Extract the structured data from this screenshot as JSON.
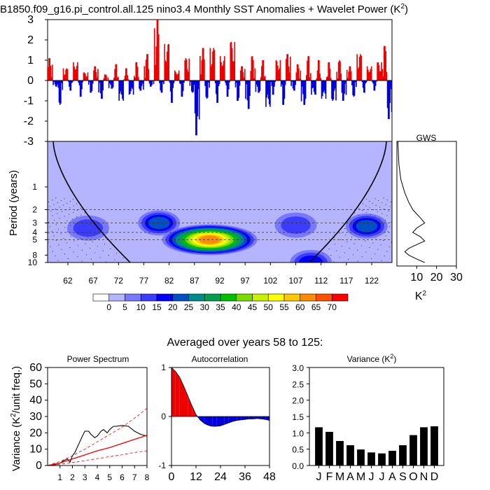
{
  "figure": {
    "title": "B1850.f09_g16.pi_control.all.125 nino3.4 Monthly SST Anomalies + Wavelet Power (K",
    "title_sup": "2",
    "title_end": ")",
    "averaged_title": "Averaged over years 58 to 125:"
  },
  "colors": {
    "positive": "#ee0000",
    "negative": "#0000dd",
    "wavelet_bg": "#b4b4ff"
  },
  "chart_data": [
    {
      "id": "sst_anomaly",
      "type": "area",
      "title": "",
      "xlabel": "",
      "ylabel": "",
      "ylim": [
        -3,
        3
      ],
      "yticks": [
        3,
        2,
        1,
        0,
        -1,
        -2,
        -3
      ],
      "xlim": [
        58,
        126
      ],
      "note": "positive anomalies red, negative blue",
      "series": [
        {
          "x": [
            58,
            59,
            60,
            61,
            62,
            63,
            64,
            65,
            66,
            67,
            68,
            69,
            70,
            71,
            72,
            73,
            74,
            75,
            76,
            77,
            78,
            79,
            80,
            81,
            82,
            83,
            84,
            85,
            86,
            87,
            88,
            89,
            90,
            91,
            92,
            93,
            94,
            95,
            96,
            97,
            98,
            99,
            100,
            101,
            102,
            103,
            104,
            105,
            106,
            107,
            108,
            109,
            110,
            111,
            112,
            113,
            114,
            115,
            116,
            117,
            118,
            119,
            120,
            121,
            122,
            123,
            124,
            125
          ],
          "values": [
            1.1,
            -0.3,
            -1.2,
            0.6,
            -0.5,
            0.9,
            -0.8,
            0.4,
            -0.6,
            0.7,
            -0.9,
            0.3,
            -0.4,
            0.8,
            -1.0,
            0.6,
            -0.7,
            0.9,
            -0.5,
            1.3,
            -0.3,
            3.0,
            -0.6,
            1.8,
            -1.1,
            0.5,
            -0.8,
            1.1,
            -0.6,
            -2.7,
            1.6,
            -0.9,
            1.6,
            -1.1,
            1.2,
            -0.8,
            1.9,
            -1.0,
            0.7,
            -1.4,
            1.2,
            -0.6,
            1.0,
            -1.3,
            -0.7,
            1.0,
            -1.2,
            1.3,
            -0.5,
            0.8,
            -1.2,
            1.2,
            -0.7,
            1.0,
            -0.9,
            0.9,
            -1.0,
            1.0,
            -1.0,
            0.7,
            -0.8,
            1.3,
            -0.6,
            0.7,
            -0.5,
            0.9,
            1.7,
            -1.9
          ]
        }
      ]
    },
    {
      "id": "wavelet_power",
      "type": "heatmap",
      "ylabel": "Period (years)",
      "ylim": [
        0.25,
        10
      ],
      "yscale": "log",
      "yticks": [
        1,
        2,
        3,
        4,
        5,
        8,
        10
      ],
      "xticks": [
        62,
        67,
        72,
        77,
        82,
        87,
        92,
        97,
        102,
        107,
        112,
        117,
        122
      ],
      "xlim": [
        58,
        126
      ],
      "dashed_periods": [
        2,
        3,
        4,
        5
      ],
      "note": "wavelet power maxima near years 80 and 87-97 at 3-6 year periods; cone of influence curves",
      "blobs": [
        {
          "x": 80,
          "period": 3.0,
          "peak": 20
        },
        {
          "x": 90,
          "period": 5.0,
          "peak": 60
        },
        {
          "x": 110,
          "period": 10,
          "peak": 15
        },
        {
          "x": 121,
          "period": 3.3,
          "peak": 20
        },
        {
          "x": 107,
          "period": 3.2,
          "peak": 12
        },
        {
          "x": 66,
          "period": 3.5,
          "peak": 8
        }
      ]
    },
    {
      "id": "colorbar",
      "type": "table",
      "labels": [
        "0",
        "5",
        "10",
        "15",
        "20",
        "25",
        "30",
        "35",
        "40",
        "45",
        "50",
        "55",
        "60",
        "65",
        "70"
      ],
      "colors": [
        "#ffffff",
        "#b4b4ff",
        "#7878ff",
        "#3c3cff",
        "#0000ff",
        "#0050c8",
        "#008c8c",
        "#00a050",
        "#00be00",
        "#78dc00",
        "#c8f000",
        "#ffff00",
        "#ffc800",
        "#ff8c00",
        "#ff5000",
        "#ff0000"
      ]
    },
    {
      "id": "gws",
      "type": "line",
      "title": "GWS",
      "xlabel": "K",
      "xlabel_sup": "2",
      "xticks": [
        10,
        20,
        30
      ],
      "xlim": [
        0,
        30
      ],
      "x": [
        0.5,
        1,
        2,
        4,
        6,
        8,
        12,
        14,
        10,
        8,
        12,
        14,
        10,
        6,
        4,
        6,
        10,
        14
      ],
      "period": [
        0.25,
        0.5,
        0.8,
        1.2,
        1.6,
        2.0,
        2.6,
        3.0,
        3.5,
        4.0,
        4.6,
        5.2,
        5.8,
        6.5,
        7.2,
        8.0,
        9.0,
        10.0
      ]
    },
    {
      "id": "power_spectrum",
      "type": "line",
      "title": "Power Spectrum",
      "ylabel": "Variance (K",
      "ylabel_sup": "2",
      "ylabel_end": "/unit freq.)",
      "xlim": [
        0,
        8
      ],
      "ylim": [
        0,
        60
      ],
      "xticks": [
        1,
        2,
        3,
        4,
        5,
        6,
        7,
        8
      ],
      "yticks": [
        0,
        10,
        20,
        30,
        40,
        50,
        60
      ],
      "series": [
        {
          "name": "",
          "x": [
            0.3,
            0.6,
            1.0,
            1.3,
            1.6,
            1.8,
            2.0,
            2.2,
            2.5,
            2.8,
            3.0,
            3.3,
            3.5,
            3.8,
            4.0,
            4.3,
            4.5,
            4.8,
            5.0,
            5.3,
            5.5,
            6.0,
            6.5,
            7.0,
            7.5,
            8.0
          ],
          "values": [
            0.3,
            0.5,
            1.5,
            3,
            4,
            2,
            6,
            8,
            13,
            18,
            21,
            21,
            19,
            17,
            18,
            21,
            22,
            20,
            22,
            24,
            24,
            24.5,
            24,
            21,
            19,
            18
          ]
        },
        {
          "name": "",
          "x": [
            0,
            1,
            2,
            3,
            4,
            5,
            6,
            7,
            8
          ],
          "values": [
            0,
            1.5,
            4,
            6.5,
            9,
            11,
            13.5,
            16,
            18.5
          ]
        },
        {
          "name": "",
          "x": [
            0,
            1,
            2,
            3,
            4,
            5,
            6,
            7,
            8
          ],
          "values": [
            0,
            2.5,
            6,
            10,
            14.5,
            19,
            23.5,
            29,
            35
          ]
        },
        {
          "name": "",
          "x": [
            0,
            1,
            2,
            3,
            4,
            5,
            6,
            7,
            8
          ],
          "values": [
            0,
            0.7,
            1.8,
            3,
            4.2,
            5.4,
            6.6,
            8,
            9
          ]
        }
      ]
    },
    {
      "id": "autocorrelation",
      "type": "area",
      "title": "Autocorrelation",
      "xlim": [
        0,
        48
      ],
      "ylim": [
        -1,
        1
      ],
      "xticks": [
        0,
        12,
        24,
        36,
        48
      ],
      "yticks": [
        1,
        0,
        -1
      ],
      "x": [
        0,
        2,
        4,
        6,
        8,
        10,
        12,
        14,
        16,
        18,
        20,
        22,
        24,
        26,
        28,
        30,
        32,
        34,
        36,
        38,
        40,
        42,
        44,
        46,
        48
      ],
      "values": [
        1.0,
        0.92,
        0.8,
        0.62,
        0.42,
        0.22,
        0.04,
        -0.07,
        -0.14,
        -0.18,
        -0.2,
        -0.2,
        -0.19,
        -0.16,
        -0.13,
        -0.1,
        -0.08,
        -0.07,
        -0.06,
        -0.05,
        -0.05,
        -0.04,
        -0.05,
        -0.06,
        -0.08
      ]
    },
    {
      "id": "variance",
      "type": "bar",
      "title": "Variance (K",
      "title_sup": "2",
      "title_end": ")",
      "categories": [
        "J",
        "F",
        "M",
        "A",
        "M",
        "J",
        "J",
        "A",
        "S",
        "O",
        "N",
        "D"
      ],
      "values": [
        1.17,
        1.03,
        0.75,
        0.62,
        0.49,
        0.4,
        0.37,
        0.45,
        0.62,
        0.93,
        1.17,
        1.2
      ],
      "ylim": [
        0,
        3.0
      ],
      "yticks": [
        "0.0",
        "0.5",
        "1.0",
        "1.5",
        "2.0",
        "2.5",
        "3.0"
      ]
    }
  ]
}
